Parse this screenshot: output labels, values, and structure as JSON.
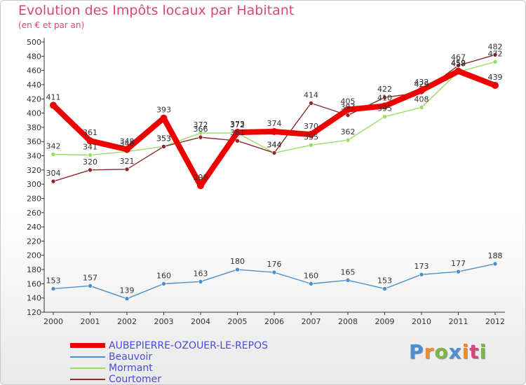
{
  "title": "Evolution des Impôts locaux par Habitant",
  "subtitle": "(en € et par an)",
  "brand": {
    "letters": [
      "P",
      "r",
      "o",
      "x",
      "i",
      "t",
      "i"
    ],
    "colors": [
      "#4a90d9",
      "#f28c28",
      "#7ab648",
      "#4a90d9",
      "#f28c28",
      "#d9477a",
      "#7ab648"
    ]
  },
  "chart_data": {
    "type": "line",
    "title": "Evolution des Impôts locaux par Habitant",
    "subtitle": "(en € et par an)",
    "xlabel": "",
    "ylabel": "",
    "ylim": [
      120,
      500
    ],
    "ytick_step": 20,
    "grid": false,
    "legend_placement": "bottom-left",
    "x": [
      2000,
      2001,
      2002,
      2003,
      2004,
      2005,
      2006,
      2007,
      2008,
      2009,
      2010,
      2011,
      2012
    ],
    "yticks": [
      120,
      140,
      160,
      180,
      200,
      220,
      240,
      260,
      280,
      300,
      320,
      340,
      360,
      380,
      400,
      420,
      440,
      460,
      480,
      500
    ],
    "series": [
      {
        "name": "AUBEPIERRE-OZOUER-LE-REPOS",
        "color": "#ee0000",
        "values": [
          411,
          361,
          349,
          393,
          298,
          373,
          374,
          370,
          405,
          410,
          432,
          459,
          439
        ],
        "labels": [
          "411",
          "361",
          "349",
          "393",
          "298",
          "373",
          "374",
          "370",
          "405",
          "410",
          "432",
          "459",
          "439"
        ]
      },
      {
        "name": "Beauvoir",
        "color": "#4a8fc9",
        "values": [
          153,
          157,
          139,
          160,
          163,
          180,
          176,
          160,
          165,
          153,
          173,
          177,
          188
        ],
        "labels": [
          "153",
          "157",
          "139",
          "160",
          "163",
          "180",
          "176",
          "160",
          "165",
          "153",
          "173",
          "177",
          "188"
        ]
      },
      {
        "name": "Mormant",
        "color": "#99dd66",
        "values": [
          342,
          341,
          346,
          353,
          372,
          372,
          344,
          355,
          362,
          395,
          408,
          458,
          472
        ],
        "labels": [
          "342",
          "341",
          "346",
          "353",
          "372",
          "372",
          "344",
          "355",
          "362",
          "395",
          "408",
          "458",
          "472"
        ]
      },
      {
        "name": "Courtomer",
        "color": "#8b2a2a",
        "values": [
          304,
          320,
          321,
          353,
          366,
          361,
          344,
          414,
          397,
          422,
          429,
          467,
          482
        ],
        "labels": [
          "304",
          "320",
          "321",
          "353",
          "366",
          "361",
          "344",
          "414",
          "397",
          "422",
          "429",
          "467",
          "482"
        ]
      }
    ]
  }
}
